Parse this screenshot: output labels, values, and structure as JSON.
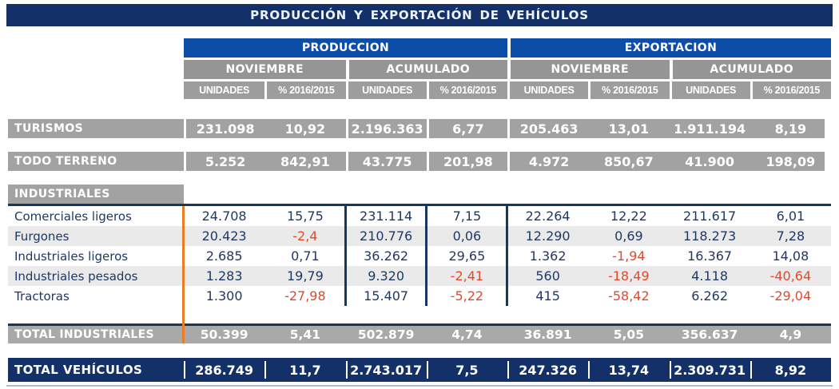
{
  "title": "PRODUCCIÓN Y EXPORTACIÓN DE VEHÍCULOS",
  "colors": {
    "title_navy": "#133168",
    "group_blue": "#0C4DA8",
    "header_gray": "#9D9D9D",
    "band_gray": "#A2A2A2",
    "zebra_gray": "#EAEAEA",
    "value_navy": "#1F3864",
    "negative_red": "#E0492E",
    "accent_orange": "#E87D22",
    "rule_navy": "#17375E"
  },
  "chart_data": {
    "type": "table",
    "title": "PRODUCCIÓN Y EXPORTACIÓN DE VEHÍCULOS",
    "column_groups": [
      "PRODUCCION",
      "EXPORTACION"
    ],
    "column_periods": [
      "NOVIEMBRE",
      "ACUMULADO",
      "NOVIEMBRE",
      "ACUMULADO"
    ],
    "columns": [
      "UNIDADES",
      "% 2016/2015",
      "UNIDADES",
      "% 2016/2015",
      "UNIDADES",
      "% 2016/2015",
      "UNIDADES",
      "% 2016/2015"
    ],
    "sections": {
      "turismos": {
        "label": "TURISMOS",
        "values": [
          "231.098",
          "10,92",
          "2.196.363",
          "6,77",
          "205.463",
          "13,01",
          "1.911.194",
          "8,19"
        ]
      },
      "todo_terreno": {
        "label": "TODO TERRENO",
        "values": [
          "5.252",
          "842,91",
          "43.775",
          "201,98",
          "4.972",
          "850,67",
          "41.900",
          "198,09"
        ]
      },
      "industriales": {
        "label": "INDUSTRIALES",
        "rows": [
          {
            "label": "Comerciales ligeros",
            "values": [
              "24.708",
              "15,75",
              "231.114",
              "7,15",
              "22.264",
              "12,22",
              "211.617",
              "6,01"
            ]
          },
          {
            "label": "Furgones",
            "values": [
              "20.423",
              "-2,4",
              "210.776",
              "0,06",
              "12.290",
              "0,69",
              "118.273",
              "7,28"
            ]
          },
          {
            "label": "Industriales ligeros",
            "values": [
              "2.685",
              "0,71",
              "36.262",
              "29,65",
              "1.362",
              "-1,94",
              "16.367",
              "14,08"
            ]
          },
          {
            "label": "Industriales pesados",
            "values": [
              "1.283",
              "19,79",
              "9.320",
              "-2,41",
              "560",
              "-18,49",
              "4.118",
              "-40,64"
            ]
          },
          {
            "label": "Tractoras",
            "values": [
              "1.300",
              "-27,98",
              "15.407",
              "-5,22",
              "415",
              "-58,42",
              "6.262",
              "-29,04"
            ]
          }
        ],
        "total": {
          "label": "TOTAL INDUSTRIALES",
          "values": [
            "50.399",
            "5,41",
            "502.879",
            "4,74",
            "36.891",
            "5,05",
            "356.637",
            "4,9"
          ]
        }
      },
      "total_vehiculos": {
        "label": "TOTAL VEHÍCULOS",
        "values": [
          "286.749",
          "11,7",
          "2.743.017",
          "7,5",
          "247.326",
          "13,74",
          "2.309.731",
          "8,92"
        ]
      }
    }
  }
}
